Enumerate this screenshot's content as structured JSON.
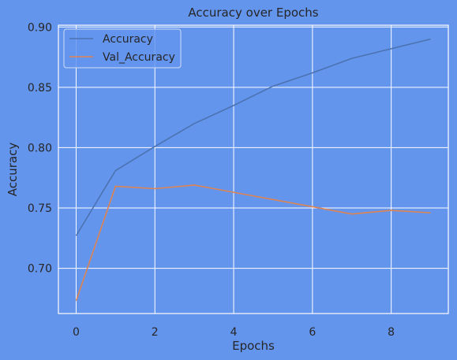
{
  "chart_data": {
    "type": "line",
    "title": "Accuracy over Epochs",
    "xlabel": "Epochs",
    "ylabel": "Accuracy",
    "x": [
      0,
      1,
      2,
      3,
      4,
      5,
      6,
      7,
      8,
      9
    ],
    "xlim": [
      -0.45,
      9.45
    ],
    "ylim": [
      0.6625,
      0.9015
    ],
    "xticks": [
      "0",
      "2",
      "4",
      "6",
      "8"
    ],
    "xtick_values": [
      0,
      2,
      4,
      6,
      8
    ],
    "yticks": [
      "0.70",
      "0.75",
      "0.80",
      "0.85",
      "0.90"
    ],
    "ytick_values": [
      0.7,
      0.75,
      0.8,
      0.85,
      0.9
    ],
    "grid": true,
    "legend_position": "top-left",
    "series": [
      {
        "name": "Accuracy",
        "color": "#4C72B0",
        "values": [
          0.727,
          0.781,
          0.801,
          0.82,
          0.835,
          0.851,
          0.862,
          0.874,
          0.882,
          0.89
        ]
      },
      {
        "name": "Val_Accuracy",
        "color": "#DD8452",
        "values": [
          0.673,
          0.768,
          0.766,
          0.769,
          0.763,
          0.757,
          0.751,
          0.745,
          0.748,
          0.746
        ]
      }
    ]
  },
  "colors": {
    "background": "#6495ED",
    "grid": "#ffffff",
    "text": "#262626"
  }
}
